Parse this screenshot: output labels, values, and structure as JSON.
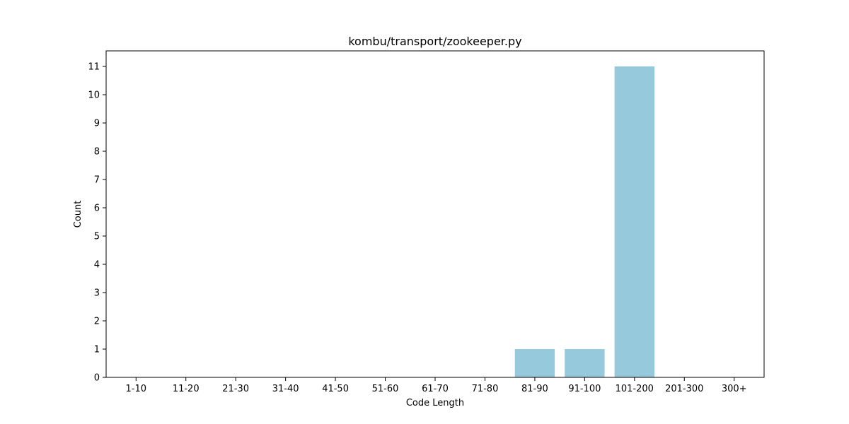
{
  "chart_data": {
    "type": "bar",
    "title": "kombu/transport/zookeeper.py",
    "xlabel": "Code Length",
    "ylabel": "Count",
    "categories": [
      "1-10",
      "11-20",
      "21-30",
      "31-40",
      "41-50",
      "51-60",
      "61-70",
      "71-80",
      "81-90",
      "91-100",
      "101-200",
      "201-300",
      "300+"
    ],
    "values": [
      0,
      0,
      0,
      0,
      0,
      0,
      0,
      0,
      1,
      1,
      11,
      0,
      0
    ],
    "ylim": [
      0,
      11.55
    ],
    "yticks": [
      0,
      1,
      2,
      3,
      4,
      5,
      6,
      7,
      8,
      9,
      10,
      11
    ],
    "grid": false,
    "bar_color": "#96c9dc"
  }
}
